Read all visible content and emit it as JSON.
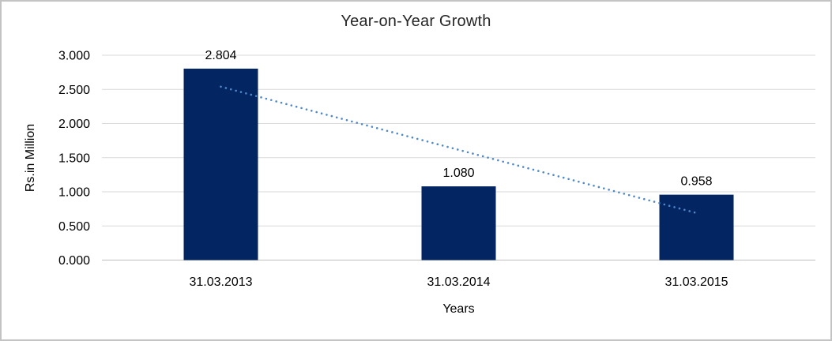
{
  "frame": {
    "background": "#ffffff",
    "border_color": "#c3c3c3"
  },
  "chart_data": {
    "type": "bar",
    "title": "Year-on-Year Growth",
    "xlabel": "Years",
    "ylabel": "Rs.in Million",
    "categories": [
      "31.03.2013",
      "31.03.2014",
      "31.03.2015"
    ],
    "values": [
      2.804,
      1.08,
      0.958
    ],
    "data_labels": [
      "2.804",
      "1.080",
      "0.958"
    ],
    "ylim": [
      0,
      3
    ],
    "ytick_step": 0.5,
    "ytick_labels": [
      "0.000",
      "0.500",
      "1.000",
      "1.500",
      "2.000",
      "2.500",
      "3.000"
    ],
    "grid": true,
    "legend": "none",
    "bar_color": "#032663",
    "gridline_color": "#d9d9d9",
    "axis_line_color": "#bfbfbf",
    "text_color": "#000000",
    "trendline": {
      "style": "dotted",
      "color": "#4e88c9",
      "start_category_index": 0,
      "start_value": 2.54,
      "end_category_index": 2,
      "end_value": 0.69
    }
  }
}
